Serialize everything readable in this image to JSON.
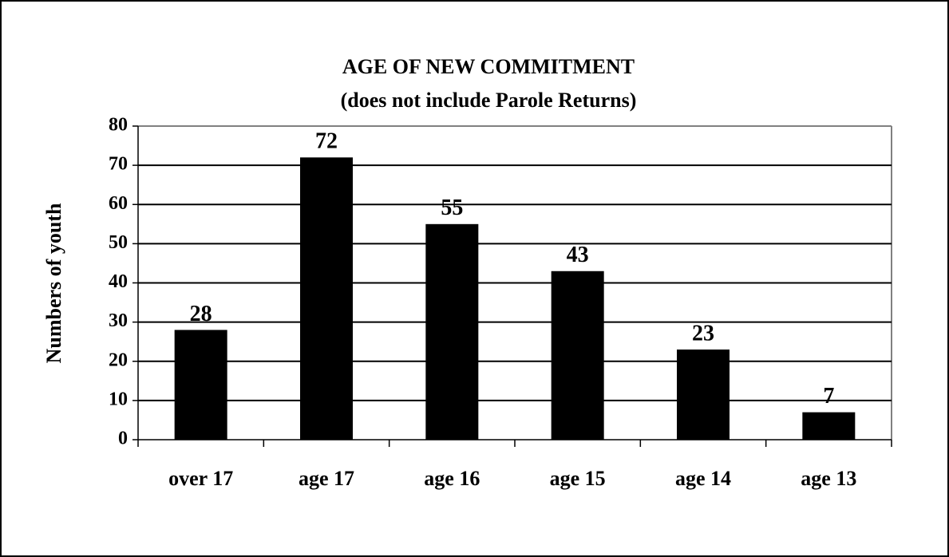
{
  "chart_data": {
    "type": "bar",
    "title": "AGE OF NEW COMMITMENT",
    "subtitle": "(does not include Parole Returns)",
    "y_label": "Numbers of youth",
    "categories": [
      "over 17",
      "age 17",
      "age 16",
      "age 15",
      "age 14",
      "age 13"
    ],
    "values": [
      28,
      72,
      55,
      43,
      23,
      7
    ],
    "color": "#000000",
    "ylim": [
      0,
      80
    ],
    "yticks": [
      0,
      10,
      20,
      30,
      40,
      50,
      60,
      70,
      80
    ],
    "grid": true
  }
}
